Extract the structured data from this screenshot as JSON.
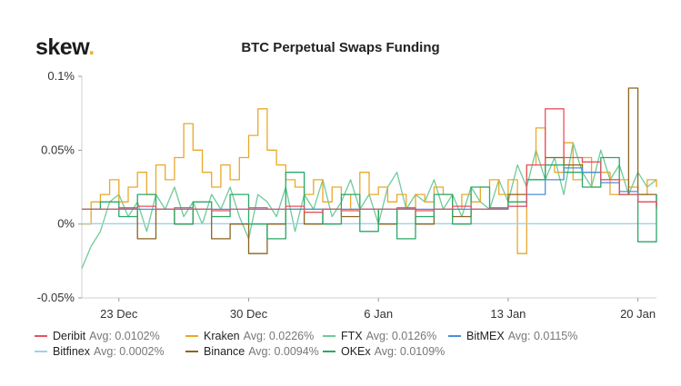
{
  "brand": {
    "name": "skew",
    "dot": ".",
    "dot_color": "#f0b429"
  },
  "chart_data": {
    "type": "line",
    "title": "BTC Perpetual Swaps Funding",
    "xlabel": "",
    "ylabel": "",
    "ylim": [
      -0.05,
      0.1
    ],
    "yticks": [
      -0.05,
      0,
      0.05,
      0.1
    ],
    "ytick_labels": [
      "-0.05%",
      "0%",
      "0.05%",
      "0.1%"
    ],
    "xlim": [
      0,
      31
    ],
    "xticks": [
      2,
      9,
      16,
      23,
      30
    ],
    "xtick_labels": [
      "23 Dec",
      "30 Dec",
      "6 Jan",
      "13 Jan",
      "20 Jan"
    ],
    "grid": false,
    "legend_position": "bottom",
    "series": [
      {
        "name": "Deribit",
        "avg_label": "Avg: 0.0102%",
        "color": "#e8525f",
        "step": true,
        "x": [
          0,
          1,
          2,
          3,
          4,
          5,
          6,
          7,
          8,
          9,
          10,
          11,
          12,
          13,
          14,
          15,
          16,
          17,
          18,
          19,
          20,
          21,
          22,
          23,
          24,
          25,
          26,
          27,
          28,
          29,
          30,
          31
        ],
        "values": [
          0.01,
          0.01,
          0.011,
          0.012,
          0.01,
          0.011,
          0.01,
          0.009,
          0.01,
          0.011,
          0.01,
          0.012,
          0.008,
          0.01,
          0.009,
          0.01,
          0.01,
          0.011,
          0.009,
          0.01,
          0.012,
          0.01,
          0.011,
          0.012,
          0.04,
          0.078,
          0.045,
          0.042,
          0.03,
          0.02,
          0.015,
          0.012
        ]
      },
      {
        "name": "Kraken",
        "avg_label": "Avg: 0.0226%",
        "color": "#e9a829",
        "step": true,
        "x": [
          0,
          0.5,
          1,
          1.5,
          2,
          2.5,
          3,
          3.5,
          4,
          4.5,
          5,
          5.5,
          6,
          6.5,
          7,
          7.5,
          8,
          8.5,
          9,
          9.5,
          10,
          10.5,
          11,
          11.5,
          12,
          12.5,
          13,
          13.5,
          14,
          14.5,
          15,
          15.5,
          16,
          16.5,
          17,
          17.5,
          18,
          18.5,
          19,
          19.5,
          20,
          20.5,
          21,
          21.5,
          22,
          22.5,
          23,
          23.5,
          24,
          24.5,
          25,
          25.5,
          26,
          26.5,
          27,
          27.5,
          28,
          28.5,
          29,
          29.5,
          30,
          30.5,
          31
        ],
        "values": [
          0.0,
          0.015,
          0.02,
          0.03,
          0.015,
          0.025,
          0.035,
          0.02,
          0.04,
          0.03,
          0.045,
          0.068,
          0.05,
          0.035,
          0.025,
          0.04,
          0.03,
          0.045,
          0.06,
          0.078,
          0.05,
          0.04,
          0.03,
          0.025,
          0.02,
          0.03,
          0.015,
          0.025,
          0.02,
          0.01,
          0.035,
          0.02,
          0.025,
          0.015,
          0.02,
          0.01,
          0.02,
          0.015,
          0.025,
          0.02,
          0.01,
          0.02,
          0.015,
          0.025,
          0.03,
          0.02,
          0.03,
          -0.02,
          0.04,
          0.065,
          0.04,
          0.035,
          0.055,
          0.03,
          0.045,
          0.025,
          0.035,
          0.02,
          0.03,
          0.025,
          0.02,
          0.03,
          0.025
        ]
      },
      {
        "name": "FTX",
        "avg_label": "Avg: 0.0126%",
        "color": "#6fcb9a",
        "step": false,
        "x": [
          0,
          0.5,
          1,
          1.5,
          2,
          2.5,
          3,
          3.5,
          4,
          4.5,
          5,
          5.5,
          6,
          6.5,
          7,
          7.5,
          8,
          8.5,
          9,
          9.5,
          10,
          10.5,
          11,
          11.5,
          12,
          12.5,
          13,
          13.5,
          14,
          14.5,
          15,
          15.5,
          16,
          16.5,
          17,
          17.5,
          18,
          18.5,
          19,
          19.5,
          20,
          20.5,
          21,
          21.5,
          22,
          22.5,
          23,
          23.5,
          24,
          24.5,
          25,
          25.5,
          26,
          26.5,
          27,
          27.5,
          28,
          28.5,
          29,
          29.5,
          30,
          30.5,
          31
        ],
        "values": [
          -0.03,
          -0.015,
          -0.005,
          0.015,
          0.02,
          0.005,
          0.015,
          -0.005,
          0.02,
          0.01,
          0.025,
          0.005,
          0.015,
          0.0,
          0.02,
          0.01,
          0.025,
          0.005,
          -0.01,
          0.02,
          0.015,
          0.005,
          0.025,
          -0.005,
          0.02,
          0.01,
          0.03,
          0.005,
          0.015,
          0.03,
          0.01,
          0.02,
          0.0,
          0.025,
          0.035,
          0.01,
          0.02,
          0.015,
          0.03,
          0.01,
          0.02,
          0.005,
          0.025,
          0.015,
          0.01,
          0.03,
          0.015,
          0.04,
          0.025,
          0.05,
          0.03,
          0.045,
          0.02,
          0.055,
          0.035,
          0.025,
          0.05,
          0.03,
          0.04,
          0.02,
          0.035,
          0.025,
          0.03
        ]
      },
      {
        "name": "BitMEX",
        "avg_label": "Avg: 0.0115%",
        "color": "#4c8fdb",
        "step": true,
        "x": [
          0,
          1,
          2,
          3,
          4,
          5,
          6,
          7,
          8,
          9,
          10,
          11,
          12,
          13,
          14,
          15,
          16,
          17,
          18,
          19,
          20,
          21,
          22,
          23,
          24,
          25,
          26,
          27,
          28,
          29,
          30,
          31
        ],
        "values": [
          0.01,
          0.01,
          0.01,
          0.01,
          0.01,
          0.01,
          0.01,
          0.01,
          0.01,
          0.01,
          0.01,
          0.01,
          0.01,
          0.01,
          0.01,
          0.01,
          0.01,
          0.01,
          0.01,
          0.01,
          0.01,
          0.01,
          0.01,
          0.012,
          0.02,
          0.03,
          0.038,
          0.035,
          0.028,
          0.022,
          0.015,
          0.012
        ]
      },
      {
        "name": "Bitfinex",
        "avg_label": "Avg: 0.0002%",
        "color": "#9fd0ef",
        "step": false,
        "x": [
          0,
          31
        ],
        "values": [
          0.0002,
          0.0002
        ]
      },
      {
        "name": "Binance",
        "avg_label": "Avg: 0.0094%",
        "color": "#8b6420",
        "step": true,
        "x": [
          0,
          1,
          2,
          3,
          4,
          5,
          6,
          7,
          8,
          9,
          10,
          11,
          12,
          13,
          14,
          15,
          16,
          17,
          18,
          19,
          20,
          21,
          22,
          23,
          24,
          25,
          26,
          27,
          28,
          29,
          29.5,
          30,
          31
        ],
        "values": [
          0.01,
          0.01,
          0.01,
          -0.01,
          0.01,
          0.0,
          0.01,
          -0.01,
          0.0,
          -0.02,
          0.0,
          0.01,
          0.0,
          0.01,
          0.005,
          0.01,
          0.0,
          0.01,
          0.0,
          0.01,
          0.005,
          0.01,
          0.01,
          0.02,
          0.03,
          0.045,
          0.04,
          0.035,
          0.03,
          0.02,
          0.092,
          0.02,
          0.01
        ]
      },
      {
        "name": "OKEx",
        "avg_label": "Avg: 0.0109%",
        "color": "#2aa866",
        "step": true,
        "x": [
          0,
          1,
          2,
          3,
          4,
          5,
          6,
          7,
          8,
          9,
          10,
          11,
          12,
          13,
          14,
          15,
          16,
          17,
          18,
          19,
          20,
          21,
          22,
          23,
          24,
          25,
          26,
          27,
          28,
          29,
          30,
          31
        ],
        "values": [
          0.01,
          0.015,
          0.005,
          0.02,
          0.01,
          0.0,
          0.015,
          0.005,
          0.02,
          0.0,
          -0.01,
          0.035,
          0.01,
          0.0,
          0.02,
          -0.005,
          0.01,
          -0.01,
          0.005,
          0.02,
          0.0,
          0.025,
          0.01,
          0.015,
          0.03,
          0.04,
          0.035,
          0.025,
          0.045,
          0.02,
          -0.012,
          0.02
        ]
      }
    ]
  }
}
